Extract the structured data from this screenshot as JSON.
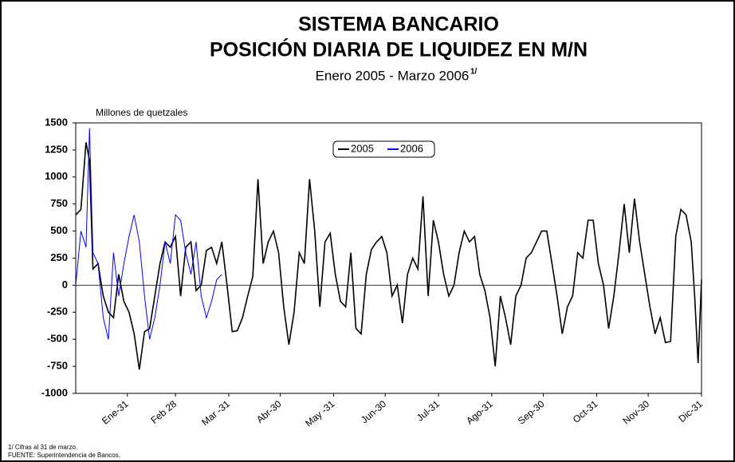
{
  "chart_data": {
    "type": "line",
    "title": "SISTEMA BANCARIO",
    "title2": "POSICIÓN DIARIA DE LIQUIDEZ EN M/N",
    "subtitle": "Enero 2005 - Marzo 2006",
    "subtitle_note": "1/",
    "y_label": "Millones de quetzales",
    "footnotes": [
      "1/ Cifras al 31 de marzo.",
      "FUENTE: Superintendencia de Bancos."
    ],
    "xlim": [
      1,
      365
    ],
    "xticks": [
      {
        "value": 31,
        "label": "Ene-31"
      },
      {
        "value": 59,
        "label": "Feb 28"
      },
      {
        "value": 90,
        "label": "Mar -31"
      },
      {
        "value": 120,
        "label": "Abr-30"
      },
      {
        "value": 151,
        "label": "May -31"
      },
      {
        "value": 181,
        "label": "Jun-30"
      },
      {
        "value": 212,
        "label": "Jul-31"
      },
      {
        "value": 243,
        "label": "Ago-31"
      },
      {
        "value": 273,
        "label": "Sep-30"
      },
      {
        "value": 304,
        "label": "Oct-31"
      },
      {
        "value": 334,
        "label": "Nov-30"
      },
      {
        "value": 365,
        "label": "Dic-31"
      }
    ],
    "ylim": [
      -1000,
      1500
    ],
    "yticks": [
      -1000,
      -750,
      -500,
      -250,
      0,
      250,
      500,
      750,
      1000,
      1250,
      1500
    ],
    "series": [
      {
        "name": "2005",
        "color": "#000000",
        "x": [
          1,
          4,
          7,
          9,
          11,
          14,
          17,
          20,
          23,
          26,
          29,
          32,
          35,
          38,
          41,
          44,
          47,
          50,
          53,
          56,
          59,
          62,
          65,
          68,
          71,
          74,
          77,
          80,
          83,
          86,
          89,
          92,
          95,
          98,
          101,
          104,
          107,
          110,
          113,
          116,
          119,
          122,
          125,
          128,
          131,
          134,
          137,
          140,
          143,
          146,
          149,
          152,
          155,
          158,
          161,
          164,
          167,
          170,
          173,
          176,
          179,
          182,
          185,
          188,
          191,
          194,
          197,
          200,
          203,
          206,
          209,
          212,
          215,
          218,
          221,
          224,
          227,
          230,
          233,
          236,
          239,
          242,
          245,
          248,
          251,
          254,
          257,
          260,
          263,
          266,
          269,
          272,
          275,
          278,
          281,
          284,
          287,
          290,
          293,
          296,
          299,
          302,
          305,
          308,
          311,
          314,
          317,
          320,
          323,
          326,
          329,
          332,
          335,
          338,
          341,
          344,
          347,
          350,
          353,
          356,
          359,
          361,
          363,
          365
        ],
        "values": [
          650,
          700,
          1320,
          1150,
          150,
          200,
          -100,
          -250,
          -300,
          100,
          -150,
          -250,
          -450,
          -780,
          -430,
          -400,
          -100,
          200,
          400,
          350,
          450,
          -100,
          350,
          400,
          -50,
          0,
          320,
          350,
          200,
          400,
          0,
          -430,
          -420,
          -300,
          -100,
          80,
          980,
          200,
          400,
          500,
          300,
          -200,
          -550,
          -250,
          300,
          200,
          980,
          500,
          -200,
          400,
          480,
          100,
          -150,
          -200,
          300,
          -400,
          -450,
          100,
          330,
          400,
          450,
          300,
          -100,
          0,
          -350,
          100,
          250,
          150,
          820,
          -100,
          600,
          400,
          100,
          -100,
          0,
          300,
          500,
          400,
          450,
          100,
          -50,
          -300,
          -750,
          -100,
          -300,
          -550,
          -100,
          0,
          250,
          300,
          400,
          500,
          500,
          200,
          -100,
          -450,
          -200,
          -100,
          300,
          250,
          600,
          600,
          200,
          0,
          -400,
          -100,
          300,
          750,
          300,
          800,
          400,
          100,
          -200,
          -450,
          -300,
          -530,
          -520,
          450,
          700,
          650,
          400,
          -100,
          -720,
          50
        ]
      },
      {
        "name": "2006",
        "color": "#0000ff",
        "x": [
          1,
          4,
          7,
          9,
          11,
          14,
          17,
          20,
          23,
          26,
          29,
          32,
          35,
          38,
          41,
          44,
          47,
          50,
          53,
          56,
          59,
          62,
          65,
          68,
          71,
          74,
          77,
          80,
          83,
          86
        ],
        "values": [
          0,
          500,
          350,
          1450,
          300,
          200,
          -300,
          -500,
          300,
          -100,
          200,
          450,
          650,
          400,
          -100,
          -500,
          -300,
          0,
          400,
          200,
          650,
          600,
          300,
          100,
          400,
          -100,
          -300,
          -150,
          50,
          100
        ]
      }
    ],
    "legend": "top-center"
  }
}
